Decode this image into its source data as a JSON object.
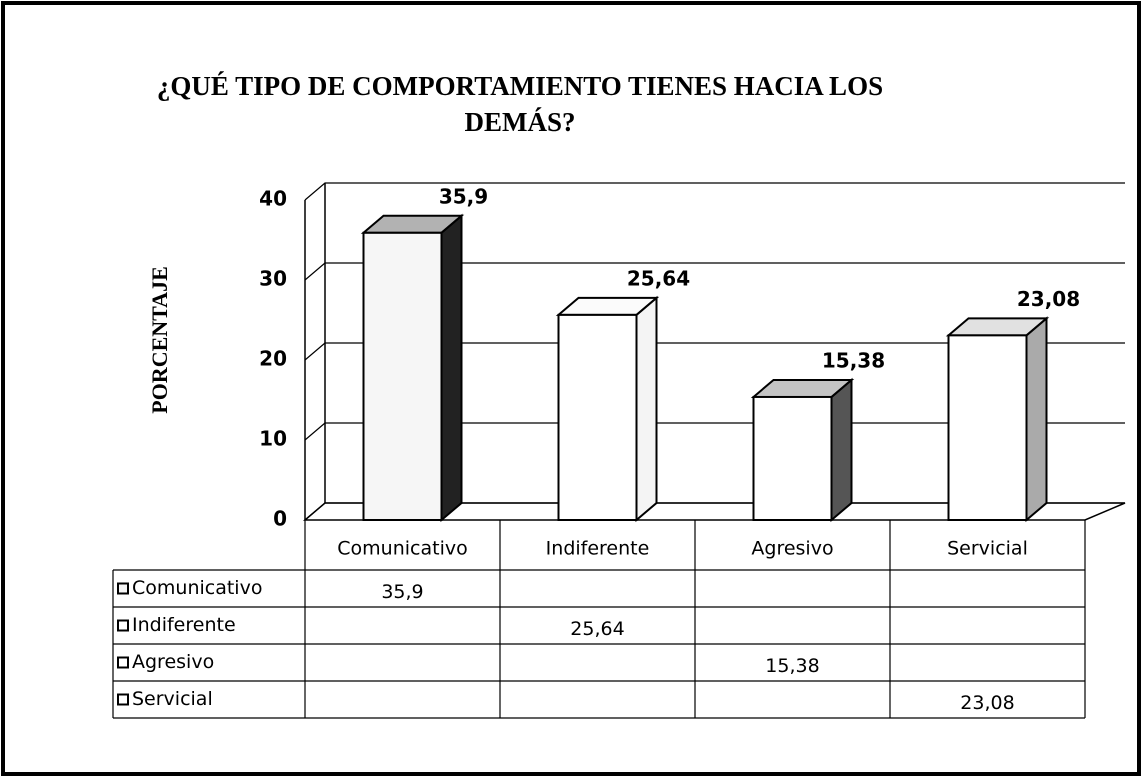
{
  "chart_data": {
    "type": "bar",
    "title": "¿QUÉ TIPO DE COMPORTAMIENTO TIENES HACIA LOS DEMÁS?",
    "ylabel": "PORCENTAJE",
    "categories": [
      "Comunicativo",
      "Indiferente",
      "Agresivo",
      "Servicial"
    ],
    "series": [
      {
        "name": "Comunicativo",
        "color": "#f6f6f6",
        "side_color": "#222222",
        "values": [
          35.9,
          null,
          null,
          null
        ],
        "value_labels": [
          "35,9",
          null,
          null,
          null
        ]
      },
      {
        "name": "Indiferente",
        "color": "#ffffff",
        "side_color": "#f4f4f4",
        "values": [
          null,
          25.64,
          null,
          null
        ],
        "value_labels": [
          null,
          "25,64",
          null,
          null
        ]
      },
      {
        "name": "Agresivo",
        "color": "#ffffff",
        "side_color": "#555555",
        "values": [
          null,
          null,
          15.38,
          null
        ],
        "value_labels": [
          null,
          null,
          "15,38",
          null
        ]
      },
      {
        "name": "Servicial",
        "color": "#ffffff",
        "side_color": "#aaaaaa",
        "values": [
          null,
          null,
          null,
          23.08
        ],
        "value_labels": [
          null,
          null,
          null,
          "23,08"
        ]
      }
    ],
    "ylim": [
      0,
      40
    ],
    "yticks": [
      0,
      10,
      20,
      30,
      40
    ],
    "grid": true
  }
}
